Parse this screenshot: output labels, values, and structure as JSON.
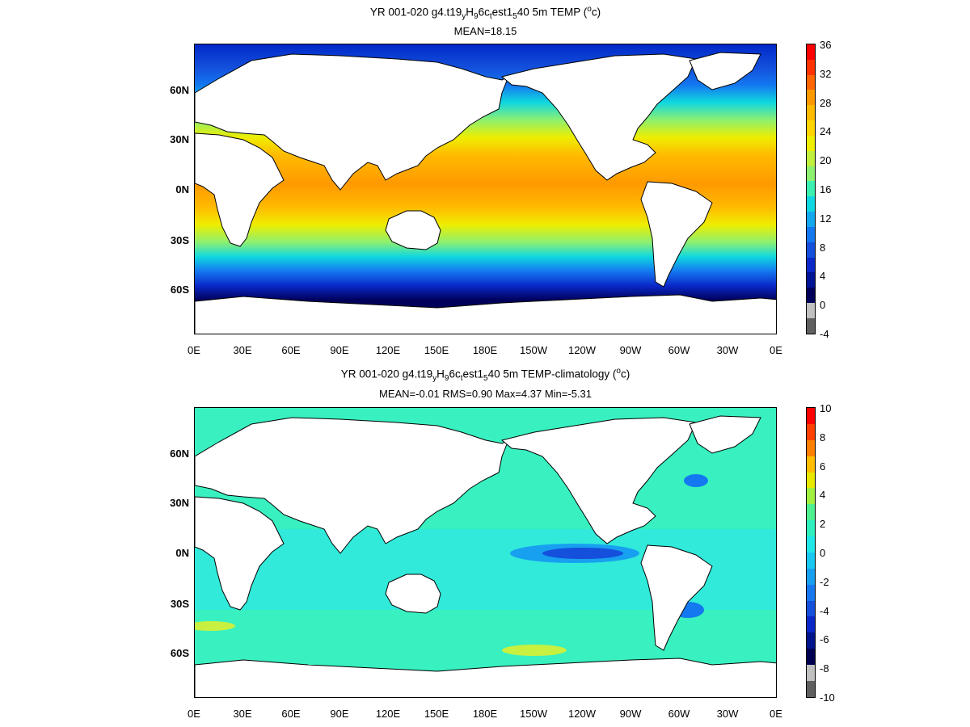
{
  "panels": [
    {
      "title_html": "YR 001-020 g4.t19<sub>y</sub>H<sub>9</sub>6c<sub>t</sub>est1<sub>5</sub>40 5m TEMP (<sup>o</sup>c)",
      "title_parts": [
        "YR 001-020 g4.t19",
        "y",
        "H",
        "9",
        "6c",
        "t",
        "est1",
        "5",
        "40 5m TEMP (",
        "o",
        "c)"
      ],
      "subtitle": "MEAN=18.15",
      "colorbar_labels": [
        "36",
        "32",
        "28",
        "24",
        "20",
        "16",
        "12",
        "8",
        "4",
        "0",
        "-4"
      ],
      "colorbar_colors": [
        "#ff0000",
        "#ff3300",
        "#ff6600",
        "#ff9900",
        "#ffbb00",
        "#ffd500",
        "#eeee00",
        "#c0f03c",
        "#8ef070",
        "#3cf0b0",
        "#10d8e0",
        "#14a8f0",
        "#1478f0",
        "#1450dc",
        "#0a28c8",
        "#001496",
        "#00005a",
        "#c0c0c0",
        "#606060"
      ],
      "latitude_labels": [
        "60N",
        "30N",
        "0N",
        "30S",
        "60S"
      ],
      "longitude_labels": [
        "0E",
        "30E",
        "60E",
        "90E",
        "120E",
        "150E",
        "180E",
        "150W",
        "120W",
        "90W",
        "60W",
        "30W",
        "0E"
      ]
    },
    {
      "title_parts": [
        "YR 001-020 g4.t19",
        "y",
        "H",
        "9",
        "6c",
        "t",
        "est1",
        "5",
        "40 5m TEMP-climatology (",
        "o",
        "c)"
      ],
      "subtitle": "MEAN=-0.01   RMS=0.90   Max=4.37   Min=-5.31",
      "colorbar_labels": [
        "10",
        "8",
        "6",
        "4",
        "2",
        "0",
        "-2",
        "-4",
        "-6",
        "-8",
        "-10"
      ],
      "colorbar_colors": [
        "#ff0000",
        "#ff4000",
        "#ff8000",
        "#ffbf00",
        "#e8e800",
        "#a0f040",
        "#50f090",
        "#30f0c0",
        "#20e8e8",
        "#18c8f0",
        "#18a0f0",
        "#1878f0",
        "#1450dc",
        "#0a28c8",
        "#00148c",
        "#000050",
        "#c0c0c0",
        "#606060"
      ],
      "latitude_labels": [
        "60N",
        "30N",
        "0N",
        "30S",
        "60S"
      ],
      "longitude_labels": [
        "0E",
        "30E",
        "60E",
        "90E",
        "120E",
        "150E",
        "180E",
        "150W",
        "120W",
        "90W",
        "60W",
        "30W",
        "0E"
      ]
    }
  ]
}
